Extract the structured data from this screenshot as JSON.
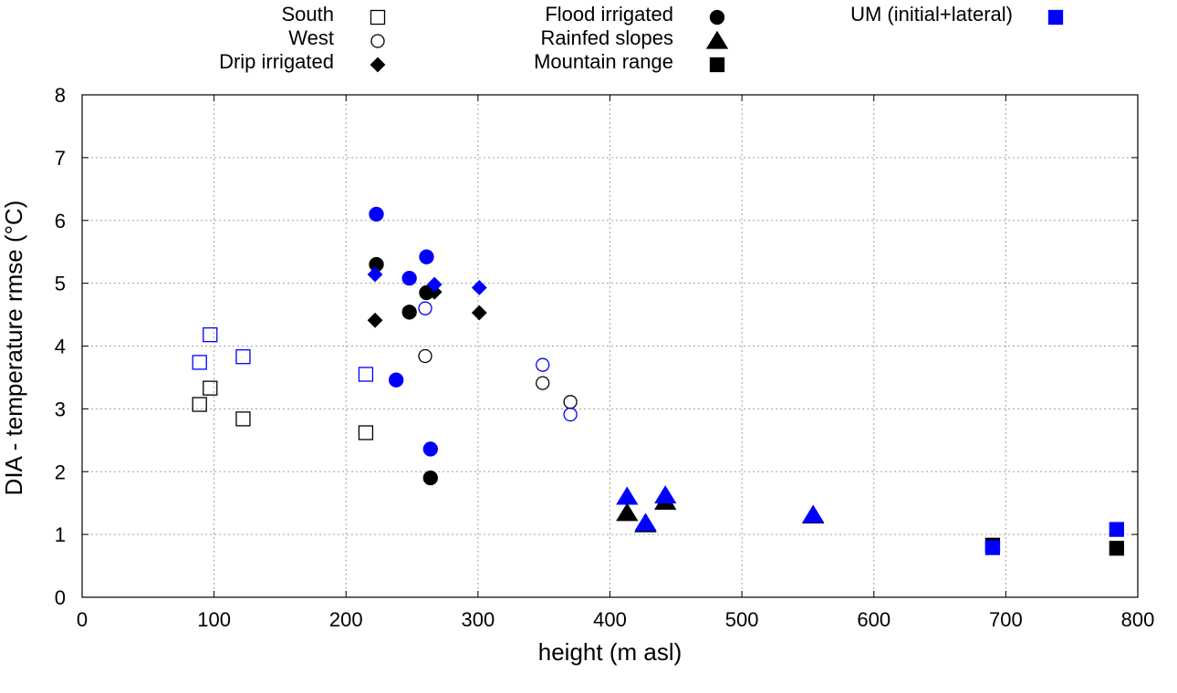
{
  "chart_data": {
    "type": "scatter",
    "title": "",
    "xlabel": "height (m asl)",
    "ylabel": "DIA - temperature rmse (°C)",
    "xlim": [
      0,
      800
    ],
    "ylim": [
      0,
      8
    ],
    "xticks": [
      "0",
      "100",
      "200",
      "300",
      "400",
      "500",
      "600",
      "700",
      "800"
    ],
    "yticks": [
      "0",
      "1",
      "2",
      "3",
      "4",
      "5",
      "6",
      "7",
      "8"
    ],
    "grid": true,
    "legend_placement": "top",
    "legend": [
      {
        "label": "South",
        "marker": "square",
        "fill": "none",
        "color": "#000000"
      },
      {
        "label": "West",
        "marker": "circle",
        "fill": "none",
        "color": "#000000"
      },
      {
        "label": "Drip irrigated",
        "marker": "diamond",
        "fill": "filled",
        "color": "#000000"
      },
      {
        "label": "Flood irrigated",
        "marker": "circle",
        "fill": "filled",
        "color": "#000000"
      },
      {
        "label": "Rainfed slopes",
        "marker": "triangle",
        "fill": "filled",
        "color": "#000000"
      },
      {
        "label": "Mountain range",
        "marker": "square",
        "fill": "filled",
        "color": "#000000"
      },
      {
        "label": "UM (initial+lateral)",
        "marker": "square",
        "fill": "filled",
        "color": "#0000ff"
      }
    ],
    "series": [
      {
        "name": "South",
        "marker": "square",
        "fill": "none",
        "color": "#000000",
        "points": [
          [
            89,
            3.07
          ],
          [
            97,
            3.33
          ],
          [
            122,
            2.84
          ],
          [
            215,
            2.62
          ]
        ]
      },
      {
        "name": "West",
        "marker": "circle",
        "fill": "none",
        "color": "#000000",
        "points": [
          [
            260,
            3.84
          ],
          [
            349,
            3.41
          ],
          [
            370,
            3.11
          ]
        ]
      },
      {
        "name": "Drip irrigated",
        "marker": "diamond",
        "fill": "filled",
        "color": "#000000",
        "points": [
          [
            222,
            4.41
          ],
          [
            267,
            4.86
          ],
          [
            301,
            4.53
          ]
        ]
      },
      {
        "name": "Flood irrigated",
        "marker": "circle",
        "fill": "filled",
        "color": "#000000",
        "points": [
          [
            223,
            5.3
          ],
          [
            248,
            4.54
          ],
          [
            261,
            4.85
          ],
          [
            264,
            1.9
          ]
        ]
      },
      {
        "name": "Rainfed slopes",
        "marker": "triangle",
        "fill": "filled",
        "color": "#000000",
        "points": [
          [
            413,
            1.34
          ],
          [
            427,
            1.16
          ],
          [
            442,
            1.52
          ],
          [
            554,
            1.3
          ]
        ]
      },
      {
        "name": "Mountain range",
        "marker": "square",
        "fill": "filled",
        "color": "#000000",
        "points": [
          [
            690,
            0.83
          ],
          [
            784,
            0.78
          ]
        ]
      },
      {
        "name": "UM South",
        "marker": "square",
        "fill": "none",
        "color": "#0000ff",
        "points": [
          [
            89,
            3.74
          ],
          [
            97,
            4.18
          ],
          [
            122,
            3.83
          ],
          [
            215,
            3.55
          ]
        ]
      },
      {
        "name": "UM West",
        "marker": "circle",
        "fill": "none",
        "color": "#0000ff",
        "points": [
          [
            260,
            4.6
          ],
          [
            349,
            3.7
          ],
          [
            370,
            2.91
          ]
        ]
      },
      {
        "name": "UM Drip irrigated",
        "marker": "diamond",
        "fill": "filled",
        "color": "#0000ff",
        "points": [
          [
            222,
            5.14
          ],
          [
            267,
            4.98
          ],
          [
            301,
            4.93
          ]
        ]
      },
      {
        "name": "UM Flood irrigated",
        "marker": "circle",
        "fill": "filled",
        "color": "#0000ff",
        "points": [
          [
            223,
            6.1
          ],
          [
            238,
            3.46
          ],
          [
            248,
            5.08
          ],
          [
            261,
            5.42
          ],
          [
            264,
            2.36
          ]
        ]
      },
      {
        "name": "UM Rainfed slopes",
        "marker": "triangle",
        "fill": "filled",
        "color": "#0000ff",
        "points": [
          [
            413,
            1.6
          ],
          [
            427,
            1.18
          ],
          [
            442,
            1.62
          ],
          [
            554,
            1.31
          ]
        ]
      },
      {
        "name": "UM Mountain range",
        "marker": "square",
        "fill": "filled",
        "color": "#0000ff",
        "points": [
          [
            690,
            0.79
          ],
          [
            784,
            1.08
          ]
        ]
      }
    ]
  }
}
